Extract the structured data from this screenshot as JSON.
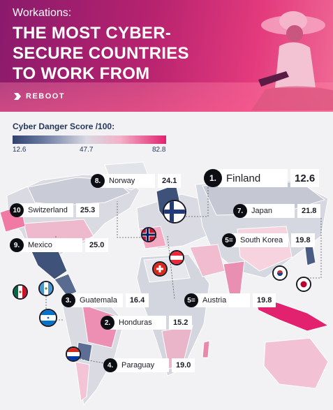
{
  "header": {
    "eyebrow": "Workations:",
    "title_lines": [
      "THE MOST CYBER-",
      "SECURE COUNTRIES",
      "TO WORK FROM"
    ],
    "brand": "REBOOT"
  },
  "legend": {
    "title": "Cyber Danger Score /100:",
    "min": "12.6",
    "mid": "47.7",
    "max": "82.8"
  },
  "rankings": [
    {
      "rank": "1.",
      "country": "Finland",
      "score": "12.6"
    },
    {
      "rank": "2.",
      "country": "Honduras",
      "score": "15.2"
    },
    {
      "rank": "3.",
      "country": "Guatemala",
      "score": "16.4"
    },
    {
      "rank": "4.",
      "country": "Paraguay",
      "score": "19.0"
    },
    {
      "rank": "5=",
      "country": "South Korea",
      "score": "19.8"
    },
    {
      "rank": "5=",
      "country": "Austria",
      "score": "19.8"
    },
    {
      "rank": "7.",
      "country": "Japan",
      "score": "21.8"
    },
    {
      "rank": "8.",
      "country": "Norway",
      "score": "24.1"
    },
    {
      "rank": "9.",
      "country": "Mexico",
      "score": "25.0"
    },
    {
      "rank": "10",
      "country": "Switzerland",
      "score": "25.3"
    }
  ],
  "colors": {
    "header_dark": "#8a1a6c",
    "header_light": "#f06a95",
    "scale_low": "#2e426e",
    "scale_mid": "#d8d9e3",
    "scale_high": "#e2216f",
    "ink": "#243659"
  }
}
